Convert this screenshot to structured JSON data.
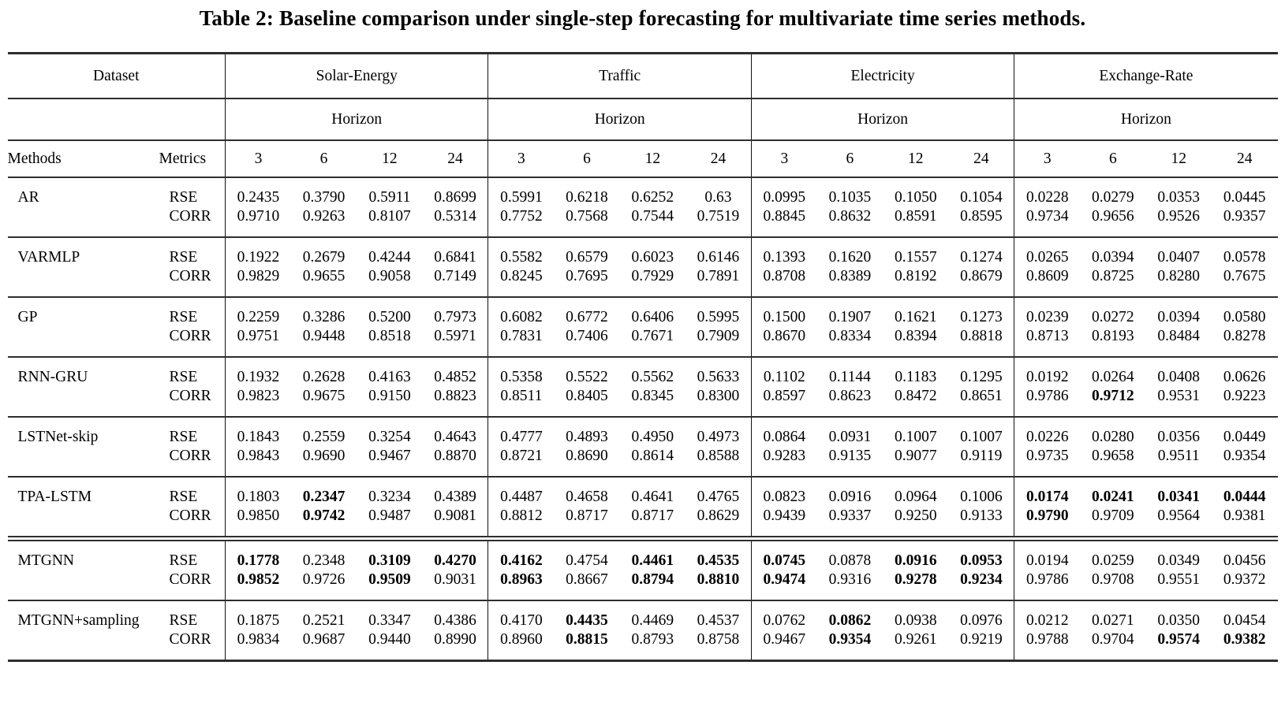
{
  "title": "Table 2: Baseline comparison under single-step forecasting for multivariate time series methods.",
  "table": {
    "corner": {
      "dataset": "Dataset",
      "methods": "Methods",
      "metrics": "Metrics"
    },
    "datasets": [
      "Solar-Energy",
      "Traffic",
      "Electricity",
      "Exchange-Rate"
    ],
    "horizon_label": "Horizon",
    "horizons": [
      "3",
      "6",
      "12",
      "24"
    ],
    "metric_labels": [
      "RSE",
      "CORR"
    ],
    "rows": [
      {
        "method": "AR",
        "rse": [
          "0.2435",
          "0.3790",
          "0.5911",
          "0.8699",
          "0.5991",
          "0.6218",
          "0.6252",
          "0.63",
          "0.0995",
          "0.1035",
          "0.1050",
          "0.1054",
          "0.0228",
          "0.0279",
          "0.0353",
          "0.0445"
        ],
        "rse_bold": [
          0,
          0,
          0,
          0,
          0,
          0,
          0,
          0,
          0,
          0,
          0,
          0,
          0,
          0,
          0,
          0
        ],
        "corr": [
          "0.9710",
          "0.9263",
          "0.8107",
          "0.5314",
          "0.7752",
          "0.7568",
          "0.7544",
          "0.7519",
          "0.8845",
          "0.8632",
          "0.8591",
          "0.8595",
          "0.9734",
          "0.9656",
          "0.9526",
          "0.9357"
        ],
        "corr_bold": [
          0,
          0,
          0,
          0,
          0,
          0,
          0,
          0,
          0,
          0,
          0,
          0,
          0,
          0,
          0,
          0
        ]
      },
      {
        "method": "VARMLP",
        "rse": [
          "0.1922",
          "0.2679",
          "0.4244",
          "0.6841",
          "0.5582",
          "0.6579",
          "0.6023",
          "0.6146",
          "0.1393",
          "0.1620",
          "0.1557",
          "0.1274",
          "0.0265",
          "0.0394",
          "0.0407",
          "0.0578"
        ],
        "rse_bold": [
          0,
          0,
          0,
          0,
          0,
          0,
          0,
          0,
          0,
          0,
          0,
          0,
          0,
          0,
          0,
          0
        ],
        "corr": [
          "0.9829",
          "0.9655",
          "0.9058",
          "0.7149",
          "0.8245",
          "0.7695",
          "0.7929",
          "0.7891",
          "0.8708",
          "0.8389",
          "0.8192",
          "0.8679",
          "0.8609",
          "0.8725",
          "0.8280",
          "0.7675"
        ],
        "corr_bold": [
          0,
          0,
          0,
          0,
          0,
          0,
          0,
          0,
          0,
          0,
          0,
          0,
          0,
          0,
          0,
          0
        ]
      },
      {
        "method": "GP",
        "rse": [
          "0.2259",
          "0.3286",
          "0.5200",
          "0.7973",
          "0.6082",
          "0.6772",
          "0.6406",
          "0.5995",
          "0.1500",
          "0.1907",
          "0.1621",
          "0.1273",
          "0.0239",
          "0.0272",
          "0.0394",
          "0.0580"
        ],
        "rse_bold": [
          0,
          0,
          0,
          0,
          0,
          0,
          0,
          0,
          0,
          0,
          0,
          0,
          0,
          0,
          0,
          0
        ],
        "corr": [
          "0.9751",
          "0.9448",
          "0.8518",
          "0.5971",
          "0.7831",
          "0.7406",
          "0.7671",
          "0.7909",
          "0.8670",
          "0.8334",
          "0.8394",
          "0.8818",
          "0.8713",
          "0.8193",
          "0.8484",
          "0.8278"
        ],
        "corr_bold": [
          0,
          0,
          0,
          0,
          0,
          0,
          0,
          0,
          0,
          0,
          0,
          0,
          0,
          0,
          0,
          0
        ]
      },
      {
        "method": "RNN-GRU",
        "rse": [
          "0.1932",
          "0.2628",
          "0.4163",
          "0.4852",
          "0.5358",
          "0.5522",
          "0.5562",
          "0.5633",
          "0.1102",
          "0.1144",
          "0.1183",
          "0.1295",
          "0.0192",
          "0.0264",
          "0.0408",
          "0.0626"
        ],
        "rse_bold": [
          0,
          0,
          0,
          0,
          0,
          0,
          0,
          0,
          0,
          0,
          0,
          0,
          0,
          0,
          0,
          0
        ],
        "corr": [
          "0.9823",
          "0.9675",
          "0.9150",
          "0.8823",
          "0.8511",
          "0.8405",
          "0.8345",
          "0.8300",
          "0.8597",
          "0.8623",
          "0.8472",
          "0.8651",
          "0.9786",
          "0.9712",
          "0.9531",
          "0.9223"
        ],
        "corr_bold": [
          0,
          0,
          0,
          0,
          0,
          0,
          0,
          0,
          0,
          0,
          0,
          0,
          0,
          1,
          0,
          0
        ]
      },
      {
        "method": "LSTNet-skip",
        "rse": [
          "0.1843",
          "0.2559",
          "0.3254",
          "0.4643",
          "0.4777",
          "0.4893",
          "0.4950",
          "0.4973",
          "0.0864",
          "0.0931",
          "0.1007",
          "0.1007",
          "0.0226",
          "0.0280",
          "0.0356",
          "0.0449"
        ],
        "rse_bold": [
          0,
          0,
          0,
          0,
          0,
          0,
          0,
          0,
          0,
          0,
          0,
          0,
          0,
          0,
          0,
          0
        ],
        "corr": [
          "0.9843",
          "0.9690",
          "0.9467",
          "0.8870",
          "0.8721",
          "0.8690",
          "0.8614",
          "0.8588",
          "0.9283",
          "0.9135",
          "0.9077",
          "0.9119",
          "0.9735",
          "0.9658",
          "0.9511",
          "0.9354"
        ],
        "corr_bold": [
          0,
          0,
          0,
          0,
          0,
          0,
          0,
          0,
          0,
          0,
          0,
          0,
          0,
          0,
          0,
          0
        ]
      },
      {
        "method": "TPA-LSTM",
        "rse": [
          "0.1803",
          "0.2347",
          "0.3234",
          "0.4389",
          "0.4487",
          "0.4658",
          "0.4641",
          "0.4765",
          "0.0823",
          "0.0916",
          "0.0964",
          "0.1006",
          "0.0174",
          "0.0241",
          "0.0341",
          "0.0444"
        ],
        "rse_bold": [
          0,
          1,
          0,
          0,
          0,
          0,
          0,
          0,
          0,
          0,
          0,
          0,
          1,
          1,
          1,
          1
        ],
        "corr": [
          "0.9850",
          "0.9742",
          "0.9487",
          "0.9081",
          "0.8812",
          "0.8717",
          "0.8717",
          "0.8629",
          "0.9439",
          "0.9337",
          "0.9250",
          "0.9133",
          "0.9790",
          "0.9709",
          "0.9564",
          "0.9381"
        ],
        "corr_bold": [
          0,
          1,
          0,
          0,
          0,
          0,
          0,
          0,
          0,
          0,
          0,
          0,
          1,
          0,
          0,
          0
        ]
      },
      {
        "method": "MTGNN",
        "rule_above": "double",
        "rse": [
          "0.1778",
          "0.2348",
          "0.3109",
          "0.4270",
          "0.4162",
          "0.4754",
          "0.4461",
          "0.4535",
          "0.0745",
          "0.0878",
          "0.0916",
          "0.0953",
          "0.0194",
          "0.0259",
          "0.0349",
          "0.0456"
        ],
        "rse_bold": [
          1,
          0,
          1,
          1,
          1,
          0,
          1,
          1,
          1,
          0,
          1,
          1,
          0,
          0,
          0,
          0
        ],
        "corr": [
          "0.9852",
          "0.9726",
          "0.9509",
          "0.9031",
          "0.8963",
          "0.8667",
          "0.8794",
          "0.8810",
          "0.9474",
          "0.9316",
          "0.9278",
          "0.9234",
          "0.9786",
          "0.9708",
          "0.9551",
          "0.9372"
        ],
        "corr_bold": [
          1,
          0,
          1,
          0,
          1,
          0,
          1,
          1,
          1,
          0,
          1,
          1,
          0,
          0,
          0,
          0
        ]
      },
      {
        "method": "MTGNN+sampling",
        "rse": [
          "0.1875",
          "0.2521",
          "0.3347",
          "0.4386",
          "0.4170",
          "0.4435",
          "0.4469",
          "0.4537",
          "0.0762",
          "0.0862",
          "0.0938",
          "0.0976",
          "0.0212",
          "0.0271",
          "0.0350",
          "0.0454"
        ],
        "rse_bold": [
          0,
          0,
          0,
          0,
          0,
          1,
          0,
          0,
          0,
          1,
          0,
          0,
          0,
          0,
          0,
          0
        ],
        "corr": [
          "0.9834",
          "0.9687",
          "0.9440",
          "0.8990",
          "0.8960",
          "0.8815",
          "0.8793",
          "0.8758",
          "0.9467",
          "0.9354",
          "0.9261",
          "0.9219",
          "0.9788",
          "0.9704",
          "0.9574",
          "0.9382"
        ],
        "corr_bold": [
          0,
          0,
          0,
          0,
          0,
          1,
          0,
          0,
          0,
          1,
          0,
          0,
          0,
          0,
          1,
          1
        ]
      }
    ]
  }
}
